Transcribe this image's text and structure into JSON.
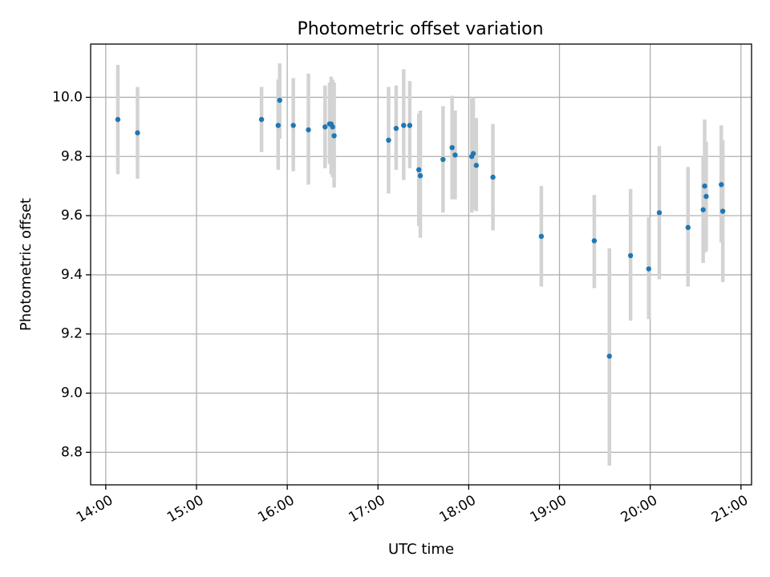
{
  "chart_data": {
    "type": "scatter",
    "title": "Photometric offset variation",
    "xlabel": "UTC time",
    "ylabel": "Photometric offset",
    "grid": true,
    "x_unit": "hours UTC",
    "xlim": [
      "13:50",
      "21:07"
    ],
    "ylim": [
      8.69,
      10.18
    ],
    "xticks": [
      "14:00",
      "15:00",
      "16:00",
      "17:00",
      "18:00",
      "19:00",
      "20:00",
      "21:00"
    ],
    "yticks": [
      "8.8",
      "9.0",
      "9.2",
      "9.4",
      "9.6",
      "9.8",
      "10.0"
    ],
    "marker_color": "#1f77b4",
    "errorbar_color": "#d3d3d3",
    "points": [
      {
        "x": "14:08",
        "y": 9.925,
        "ylo": 9.74,
        "yhi": 10.11
      },
      {
        "x": "14:21",
        "y": 9.88,
        "ylo": 9.725,
        "yhi": 10.035
      },
      {
        "x": "15:43",
        "y": 9.925,
        "ylo": 9.815,
        "yhi": 10.035
      },
      {
        "x": "15:54",
        "y": 9.905,
        "ylo": 9.755,
        "yhi": 10.06
      },
      {
        "x": "15:55",
        "y": 9.99,
        "ylo": 9.86,
        "yhi": 10.115
      },
      {
        "x": "16:04",
        "y": 9.905,
        "ylo": 9.75,
        "yhi": 10.065
      },
      {
        "x": "16:14",
        "y": 9.89,
        "ylo": 9.705,
        "yhi": 10.08
      },
      {
        "x": "16:25",
        "y": 9.9,
        "ylo": 9.76,
        "yhi": 10.04
      },
      {
        "x": "16:28",
        "y": 9.91,
        "ylo": 9.775,
        "yhi": 10.05
      },
      {
        "x": "16:29",
        "y": 9.91,
        "ylo": 9.74,
        "yhi": 10.07
      },
      {
        "x": "16:30",
        "y": 9.9,
        "ylo": 9.73,
        "yhi": 10.06
      },
      {
        "x": "16:31",
        "y": 9.87,
        "ylo": 9.695,
        "yhi": 10.05
      },
      {
        "x": "17:07",
        "y": 9.855,
        "ylo": 9.675,
        "yhi": 10.035
      },
      {
        "x": "17:12",
        "y": 9.895,
        "ylo": 9.755,
        "yhi": 10.04
      },
      {
        "x": "17:17",
        "y": 9.905,
        "ylo": 9.72,
        "yhi": 10.095
      },
      {
        "x": "17:21",
        "y": 9.905,
        "ylo": 9.76,
        "yhi": 10.055
      },
      {
        "x": "17:27",
        "y": 9.755,
        "ylo": 9.565,
        "yhi": 9.945
      },
      {
        "x": "17:28",
        "y": 9.735,
        "ylo": 9.525,
        "yhi": 9.955
      },
      {
        "x": "17:43",
        "y": 9.79,
        "ylo": 9.61,
        "yhi": 9.97
      },
      {
        "x": "17:49",
        "y": 9.83,
        "ylo": 9.655,
        "yhi": 10.005
      },
      {
        "x": "17:51",
        "y": 9.805,
        "ylo": 9.655,
        "yhi": 9.955
      },
      {
        "x": "18:02",
        "y": 9.8,
        "ylo": 9.61,
        "yhi": 9.995
      },
      {
        "x": "18:03",
        "y": 9.81,
        "ylo": 9.62,
        "yhi": 10.0
      },
      {
        "x": "18:05",
        "y": 9.77,
        "ylo": 9.615,
        "yhi": 9.93
      },
      {
        "x": "18:16",
        "y": 9.73,
        "ylo": 9.55,
        "yhi": 9.91
      },
      {
        "x": "18:48",
        "y": 9.53,
        "ylo": 9.36,
        "yhi": 9.7
      },
      {
        "x": "19:23",
        "y": 9.515,
        "ylo": 9.355,
        "yhi": 9.67
      },
      {
        "x": "19:33",
        "y": 9.125,
        "ylo": 8.755,
        "yhi": 9.49
      },
      {
        "x": "19:47",
        "y": 9.465,
        "ylo": 9.245,
        "yhi": 9.69
      },
      {
        "x": "19:59",
        "y": 9.42,
        "ylo": 9.25,
        "yhi": 9.595
      },
      {
        "x": "20:06",
        "y": 9.61,
        "ylo": 9.385,
        "yhi": 9.835
      },
      {
        "x": "20:25",
        "y": 9.56,
        "ylo": 9.36,
        "yhi": 9.765
      },
      {
        "x": "20:35",
        "y": 9.62,
        "ylo": 9.44,
        "yhi": 9.8
      },
      {
        "x": "20:36",
        "y": 9.7,
        "ylo": 9.475,
        "yhi": 9.925
      },
      {
        "x": "20:37",
        "y": 9.665,
        "ylo": 9.48,
        "yhi": 9.85
      },
      {
        "x": "20:47",
        "y": 9.705,
        "ylo": 9.51,
        "yhi": 9.905
      },
      {
        "x": "20:48",
        "y": 9.615,
        "ylo": 9.375,
        "yhi": 9.855
      }
    ]
  }
}
